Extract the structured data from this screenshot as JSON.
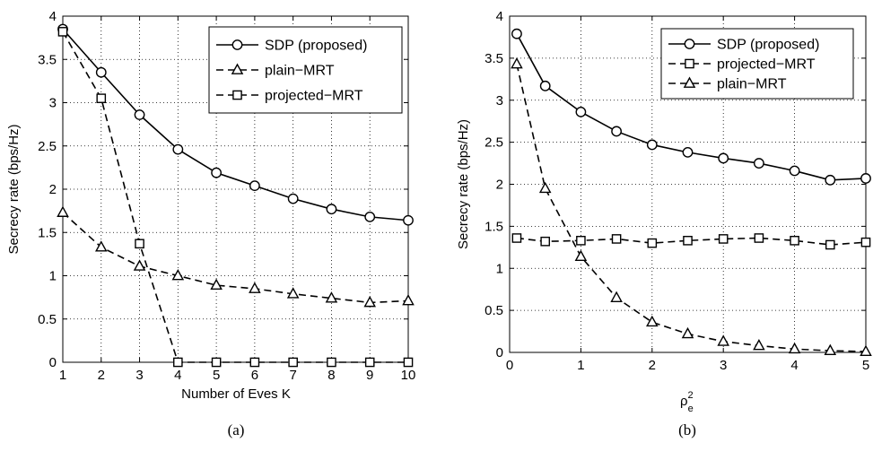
{
  "chart_data": [
    {
      "type": "line",
      "caption": "(a)",
      "xlabel": "Number of Eves K",
      "ylabel": "Secrecy rate (bps/Hz)",
      "xlim": [
        1,
        10
      ],
      "ylim": [
        0,
        4
      ],
      "xticks": [
        "1",
        "2",
        "3",
        "4",
        "5",
        "6",
        "7",
        "8",
        "9",
        "10"
      ],
      "yticks": [
        "0",
        "0.5",
        "1",
        "1.5",
        "2",
        "2.5",
        "3",
        "3.5",
        "4"
      ],
      "grid": "dotted",
      "legend_position": "top-right",
      "series": [
        {
          "name": "SDP (proposed)",
          "marker": "circle",
          "line": "solid",
          "x": [
            1,
            2,
            3,
            4,
            5,
            6,
            7,
            8,
            9,
            10
          ],
          "y": [
            3.85,
            3.35,
            2.86,
            2.46,
            2.19,
            2.04,
            1.89,
            1.77,
            1.68,
            1.64
          ]
        },
        {
          "name": "plain−MRT",
          "marker": "triangle",
          "line": "dashed",
          "x": [
            1,
            2,
            3,
            4,
            5,
            6,
            7,
            8,
            9,
            10
          ],
          "y": [
            1.73,
            1.33,
            1.11,
            1.0,
            0.89,
            0.85,
            0.79,
            0.74,
            0.69,
            0.71
          ]
        },
        {
          "name": "projected−MRT",
          "marker": "square",
          "line": "dashed",
          "x": [
            1,
            2,
            3,
            4,
            5,
            6,
            7,
            8,
            9,
            10
          ],
          "y": [
            3.82,
            3.05,
            1.37,
            0.0,
            0.0,
            0.0,
            0.0,
            0.0,
            0.0,
            0.0
          ]
        }
      ]
    },
    {
      "type": "line",
      "caption": "(b)",
      "xlabel_base": "ρ",
      "xlabel_sup": "2",
      "xlabel_sub": "e",
      "ylabel": "Secrecy rate (bps/Hz)",
      "xlim": [
        0,
        5
      ],
      "ylim": [
        0,
        4
      ],
      "xticks": [
        "0",
        "1",
        "2",
        "3",
        "4",
        "5"
      ],
      "yticks": [
        "0",
        "0.5",
        "1",
        "1.5",
        "2",
        "2.5",
        "3",
        "3.5",
        "4"
      ],
      "grid": "dotted",
      "legend_position": "top-right",
      "series": [
        {
          "name": "SDP (proposed)",
          "marker": "circle",
          "line": "solid",
          "x": [
            0.1,
            0.5,
            1.0,
            1.5,
            2.0,
            2.5,
            3.0,
            3.5,
            4.0,
            4.5,
            5.0
          ],
          "y": [
            3.79,
            3.17,
            2.86,
            2.63,
            2.47,
            2.38,
            2.31,
            2.25,
            2.16,
            2.05,
            2.07
          ]
        },
        {
          "name": "projected−MRT",
          "marker": "square",
          "line": "dashed",
          "x": [
            0.1,
            0.5,
            1.0,
            1.5,
            2.0,
            2.5,
            3.0,
            3.5,
            4.0,
            4.5,
            5.0
          ],
          "y": [
            1.36,
            1.32,
            1.33,
            1.35,
            1.3,
            1.33,
            1.35,
            1.36,
            1.33,
            1.28,
            1.31
          ]
        },
        {
          "name": "plain−MRT",
          "marker": "triangle",
          "line": "dashed",
          "x": [
            0.1,
            0.5,
            1.0,
            1.5,
            2.0,
            2.5,
            3.0,
            3.5,
            4.0,
            4.5,
            5.0
          ],
          "y": [
            3.43,
            1.95,
            1.14,
            0.65,
            0.36,
            0.22,
            0.13,
            0.08,
            0.04,
            0.02,
            0.01
          ]
        }
      ]
    }
  ]
}
